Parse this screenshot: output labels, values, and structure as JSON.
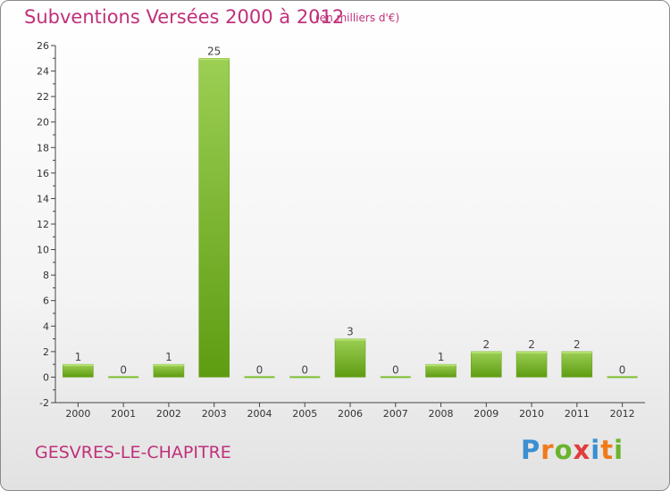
{
  "header": {
    "title": "Subventions Versées 2000 à 2012",
    "unit": "(en milliers d'€)"
  },
  "footer": {
    "commune": "GESVRES-LE-CHAPITRE",
    "logo": [
      "P",
      "r",
      "o",
      "x",
      "i",
      "t",
      "i"
    ],
    "logo_colors": [
      "#3a8fd0",
      "#f07a1a",
      "#6ab42d",
      "#e23c3c",
      "#3a8fd0",
      "#f07a1a",
      "#6ab42d"
    ]
  },
  "chart_data": {
    "type": "bar",
    "categories": [
      "2000",
      "2001",
      "2002",
      "2003",
      "2004",
      "2005",
      "2006",
      "2007",
      "2008",
      "2009",
      "2010",
      "2011",
      "2012"
    ],
    "values": [
      1,
      0,
      1,
      25,
      0,
      0,
      3,
      0,
      1,
      2,
      2,
      2,
      0
    ],
    "value_labels": [
      "1",
      "0",
      "1",
      "25",
      "0",
      "0",
      "3",
      "0",
      "1",
      "2",
      "2",
      "2",
      "0"
    ],
    "title": "Subventions Versées 2000 à 2012",
    "xlabel": "",
    "ylabel": "",
    "ylim": [
      -2,
      26
    ],
    "yticks": [
      -2,
      0,
      2,
      4,
      6,
      8,
      10,
      12,
      14,
      16,
      18,
      20,
      22,
      24,
      26
    ],
    "grid": false,
    "bar_color": "#7cbf2e"
  }
}
